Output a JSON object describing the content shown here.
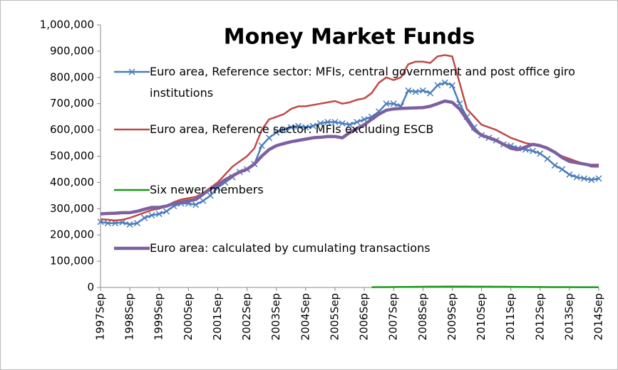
{
  "chart_data": {
    "type": "line",
    "title": "Money Market Funds",
    "categories": [
      "1997Sep",
      null,
      null,
      null,
      "1998Sep",
      null,
      null,
      null,
      "1999Sep",
      null,
      null,
      null,
      "2000Sep",
      null,
      null,
      null,
      "2001Sep",
      null,
      null,
      null,
      "2002Sep",
      null,
      null,
      null,
      "2003Sep",
      null,
      null,
      null,
      "2004Sep",
      null,
      null,
      null,
      "2005Sep",
      null,
      null,
      null,
      "2006Sep",
      null,
      null,
      null,
      "2007Sep",
      null,
      null,
      null,
      "2008Sep",
      null,
      null,
      null,
      "2009Sep",
      null,
      null,
      null,
      "2010Sep",
      null,
      null,
      null,
      "2011Sep",
      null,
      null,
      null,
      "2012Sep",
      null,
      null,
      null,
      "2013Sep",
      null,
      null,
      null,
      "2014Sep"
    ],
    "series": [
      {
        "name": "Euro area, Reference sector: MFIs, central government and post office giro institutions",
        "color": "#4a7ebb",
        "marker": "x",
        "values": [
          250000,
          245000,
          245000,
          248000,
          240000,
          245000,
          265000,
          275000,
          280000,
          290000,
          310000,
          320000,
          320000,
          315000,
          330000,
          350000,
          380000,
          400000,
          420000,
          440000,
          450000,
          470000,
          540000,
          570000,
          590000,
          600000,
          610000,
          615000,
          610000,
          615000,
          625000,
          630000,
          630000,
          625000,
          620000,
          630000,
          640000,
          650000,
          670000,
          700000,
          700000,
          690000,
          750000,
          745000,
          750000,
          740000,
          770000,
          780000,
          770000,
          700000,
          650000,
          610000,
          580000,
          570000,
          560000,
          545000,
          540000,
          530000,
          525000,
          520000,
          510000,
          490000,
          465000,
          450000,
          430000,
          420000,
          415000,
          410000,
          415000
        ]
      },
      {
        "name": "Euro area, Reference sector: MFIs excluding ESCB",
        "color": "#be4b48",
        "values": [
          260000,
          258000,
          255000,
          258000,
          265000,
          275000,
          285000,
          295000,
          300000,
          310000,
          325000,
          335000,
          340000,
          345000,
          360000,
          380000,
          400000,
          430000,
          460000,
          480000,
          500000,
          530000,
          600000,
          640000,
          650000,
          660000,
          680000,
          690000,
          690000,
          695000,
          700000,
          705000,
          710000,
          700000,
          705000,
          715000,
          720000,
          740000,
          780000,
          800000,
          790000,
          800000,
          850000,
          860000,
          860000,
          855000,
          880000,
          885000,
          880000,
          780000,
          680000,
          650000,
          620000,
          610000,
          600000,
          585000,
          570000,
          560000,
          550000,
          545000,
          540000,
          530000,
          515000,
          500000,
          490000,
          480000,
          470000,
          460000,
          460000
        ]
      },
      {
        "name": "Six newer members",
        "color": "#1a9a1a",
        "values": [
          null,
          null,
          null,
          null,
          null,
          null,
          null,
          null,
          null,
          null,
          null,
          null,
          null,
          null,
          null,
          null,
          null,
          null,
          null,
          null,
          null,
          null,
          null,
          null,
          null,
          null,
          null,
          null,
          null,
          null,
          null,
          null,
          null,
          null,
          null,
          null,
          null,
          1000,
          1200,
          1500,
          1800,
          2000,
          2200,
          2500,
          2800,
          3000,
          3200,
          3300,
          3400,
          3400,
          3300,
          3200,
          3100,
          3000,
          2800,
          2600,
          2400,
          2200,
          2000,
          1800,
          1600,
          1500,
          1400,
          1300,
          1200,
          1100,
          1000,
          1000,
          1000
        ]
      },
      {
        "name": "Euro area: calculated by cumulating transactions",
        "color": "#7d60a0",
        "values": [
          280000,
          282000,
          283000,
          285000,
          285000,
          290000,
          298000,
          305000,
          305000,
          310000,
          320000,
          325000,
          330000,
          335000,
          355000,
          375000,
          390000,
          410000,
          425000,
          440000,
          450000,
          470000,
          500000,
          525000,
          540000,
          548000,
          555000,
          560000,
          565000,
          570000,
          572000,
          575000,
          575000,
          570000,
          590000,
          605000,
          620000,
          640000,
          660000,
          675000,
          680000,
          682000,
          683000,
          684000,
          685000,
          690000,
          700000,
          710000,
          705000,
          680000,
          640000,
          600000,
          580000,
          570000,
          560000,
          545000,
          530000,
          525000,
          535000,
          545000,
          540000,
          530000,
          515000,
          495000,
          480000,
          475000,
          470000,
          465000,
          465000
        ]
      }
    ],
    "ylim": [
      0,
      1000000
    ],
    "yticks": [
      0,
      {
        "value": 100000,
        "label": "100,000"
      },
      {
        "value": 200000,
        "label": "200,000"
      },
      {
        "value": 300000,
        "label": "300,000"
      },
      {
        "value": 400000,
        "label": "400,000"
      },
      {
        "value": 500000,
        "label": "500,000"
      },
      {
        "value": 600000,
        "label": "600,000"
      },
      {
        "value": 700000,
        "label": "700,000"
      },
      {
        "value": 800000,
        "label": "800,000"
      },
      {
        "value": 900000,
        "label": "900,000"
      },
      {
        "value": 1000000,
        "label": "1,000,000"
      }
    ],
    "grid": false
  }
}
